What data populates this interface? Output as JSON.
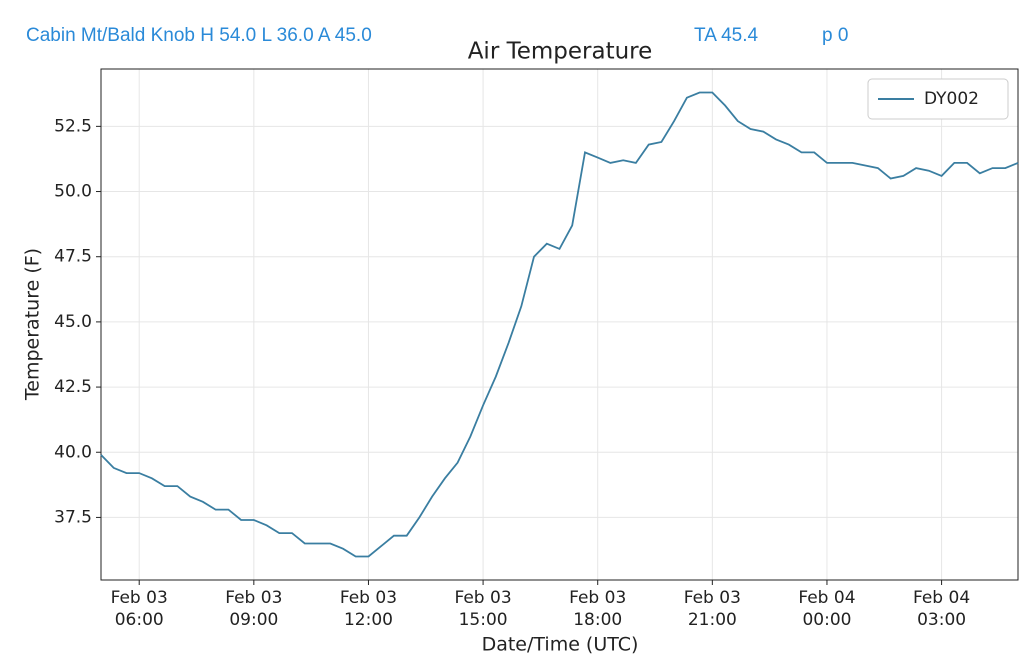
{
  "header": {
    "station": "Cabin Mt/Bald Knob H 54.0 L 36.0 A 45.0",
    "ta": "TA 45.4",
    "p": "p 0"
  },
  "chart_data": {
    "type": "line",
    "title": "Air Temperature",
    "x_label": "Date/Time (UTC)",
    "y_label": "Temperature (F)",
    "x": [
      "Feb 03 05:00",
      "Feb 03 05:20",
      "Feb 03 05:40",
      "Feb 03 06:00",
      "Feb 03 06:20",
      "Feb 03 06:40",
      "Feb 03 07:00",
      "Feb 03 07:20",
      "Feb 03 07:40",
      "Feb 03 08:00",
      "Feb 03 08:20",
      "Feb 03 08:40",
      "Feb 03 09:00",
      "Feb 03 09:20",
      "Feb 03 09:40",
      "Feb 03 10:00",
      "Feb 03 10:20",
      "Feb 03 10:40",
      "Feb 03 11:00",
      "Feb 03 11:20",
      "Feb 03 11:40",
      "Feb 03 12:00",
      "Feb 03 12:20",
      "Feb 03 12:40",
      "Feb 03 13:00",
      "Feb 03 13:20",
      "Feb 03 13:40",
      "Feb 03 14:00",
      "Feb 03 14:20",
      "Feb 03 14:40",
      "Feb 03 15:00",
      "Feb 03 15:20",
      "Feb 03 15:40",
      "Feb 03 16:00",
      "Feb 03 16:20",
      "Feb 03 16:40",
      "Feb 03 17:00",
      "Feb 03 17:20",
      "Feb 03 17:40",
      "Feb 03 18:00",
      "Feb 03 18:20",
      "Feb 03 18:40",
      "Feb 03 19:00",
      "Feb 03 19:20",
      "Feb 03 19:40",
      "Feb 03 20:00",
      "Feb 03 20:20",
      "Feb 03 20:40",
      "Feb 03 21:00",
      "Feb 03 21:20",
      "Feb 03 21:40",
      "Feb 03 22:00",
      "Feb 03 22:20",
      "Feb 03 22:40",
      "Feb 03 23:00",
      "Feb 03 23:20",
      "Feb 03 23:40",
      "Feb 04 00:00",
      "Feb 04 00:20",
      "Feb 04 00:40",
      "Feb 04 01:00",
      "Feb 04 01:20",
      "Feb 04 01:40",
      "Feb 04 02:00",
      "Feb 04 02:20",
      "Feb 04 02:40",
      "Feb 04 03:00",
      "Feb 04 03:20",
      "Feb 04 03:40",
      "Feb 04 04:00",
      "Feb 04 04:20",
      "Feb 04 04:40",
      "Feb 04 05:00"
    ],
    "series": [
      {
        "name": "DY002",
        "color": "#3a7ea1",
        "values": [
          39.9,
          39.4,
          39.2,
          39.2,
          39.0,
          38.7,
          38.7,
          38.3,
          38.1,
          37.8,
          37.8,
          37.4,
          37.4,
          37.2,
          36.9,
          36.9,
          36.5,
          36.5,
          36.5,
          36.3,
          36.0,
          36.0,
          36.4,
          36.8,
          36.8,
          37.5,
          38.3,
          39.0,
          39.6,
          40.6,
          41.8,
          42.9,
          44.2,
          45.6,
          47.5,
          48.0,
          47.8,
          48.7,
          51.5,
          51.3,
          51.1,
          51.2,
          51.1,
          51.8,
          51.9,
          52.7,
          53.6,
          53.8,
          53.8,
          53.3,
          52.7,
          52.4,
          52.3,
          52.0,
          51.8,
          51.5,
          51.5,
          51.1,
          51.1,
          51.1,
          51.0,
          50.9,
          50.5,
          50.6,
          50.9,
          50.8,
          50.6,
          51.1,
          51.1,
          50.7,
          50.9,
          50.9,
          51.1
        ]
      }
    ],
    "xlim": [
      "Feb 03 05:00",
      "Feb 04 05:00"
    ],
    "xticks": [
      {
        "value": "Feb 03 06:00",
        "label": "Feb 03\n06:00"
      },
      {
        "value": "Feb 03 09:00",
        "label": "Feb 03\n09:00"
      },
      {
        "value": "Feb 03 12:00",
        "label": "Feb 03\n12:00"
      },
      {
        "value": "Feb 03 15:00",
        "label": "Feb 03\n15:00"
      },
      {
        "value": "Feb 03 18:00",
        "label": "Feb 03\n18:00"
      },
      {
        "value": "Feb 03 21:00",
        "label": "Feb 03\n21:00"
      },
      {
        "value": "Feb 04 00:00",
        "label": "Feb 04\n00:00"
      },
      {
        "value": "Feb 04 03:00",
        "label": "Feb 04\n03:00"
      }
    ],
    "ylim": [
      35.1,
      54.7
    ],
    "yticks": [
      37.5,
      {
        "value": 40,
        "label": "40.0"
      },
      42.5,
      {
        "value": 45,
        "label": "45.0"
      },
      47.5,
      {
        "value": 50,
        "label": "50.0"
      },
      52.5
    ],
    "grid": true,
    "legend": "upper right"
  }
}
